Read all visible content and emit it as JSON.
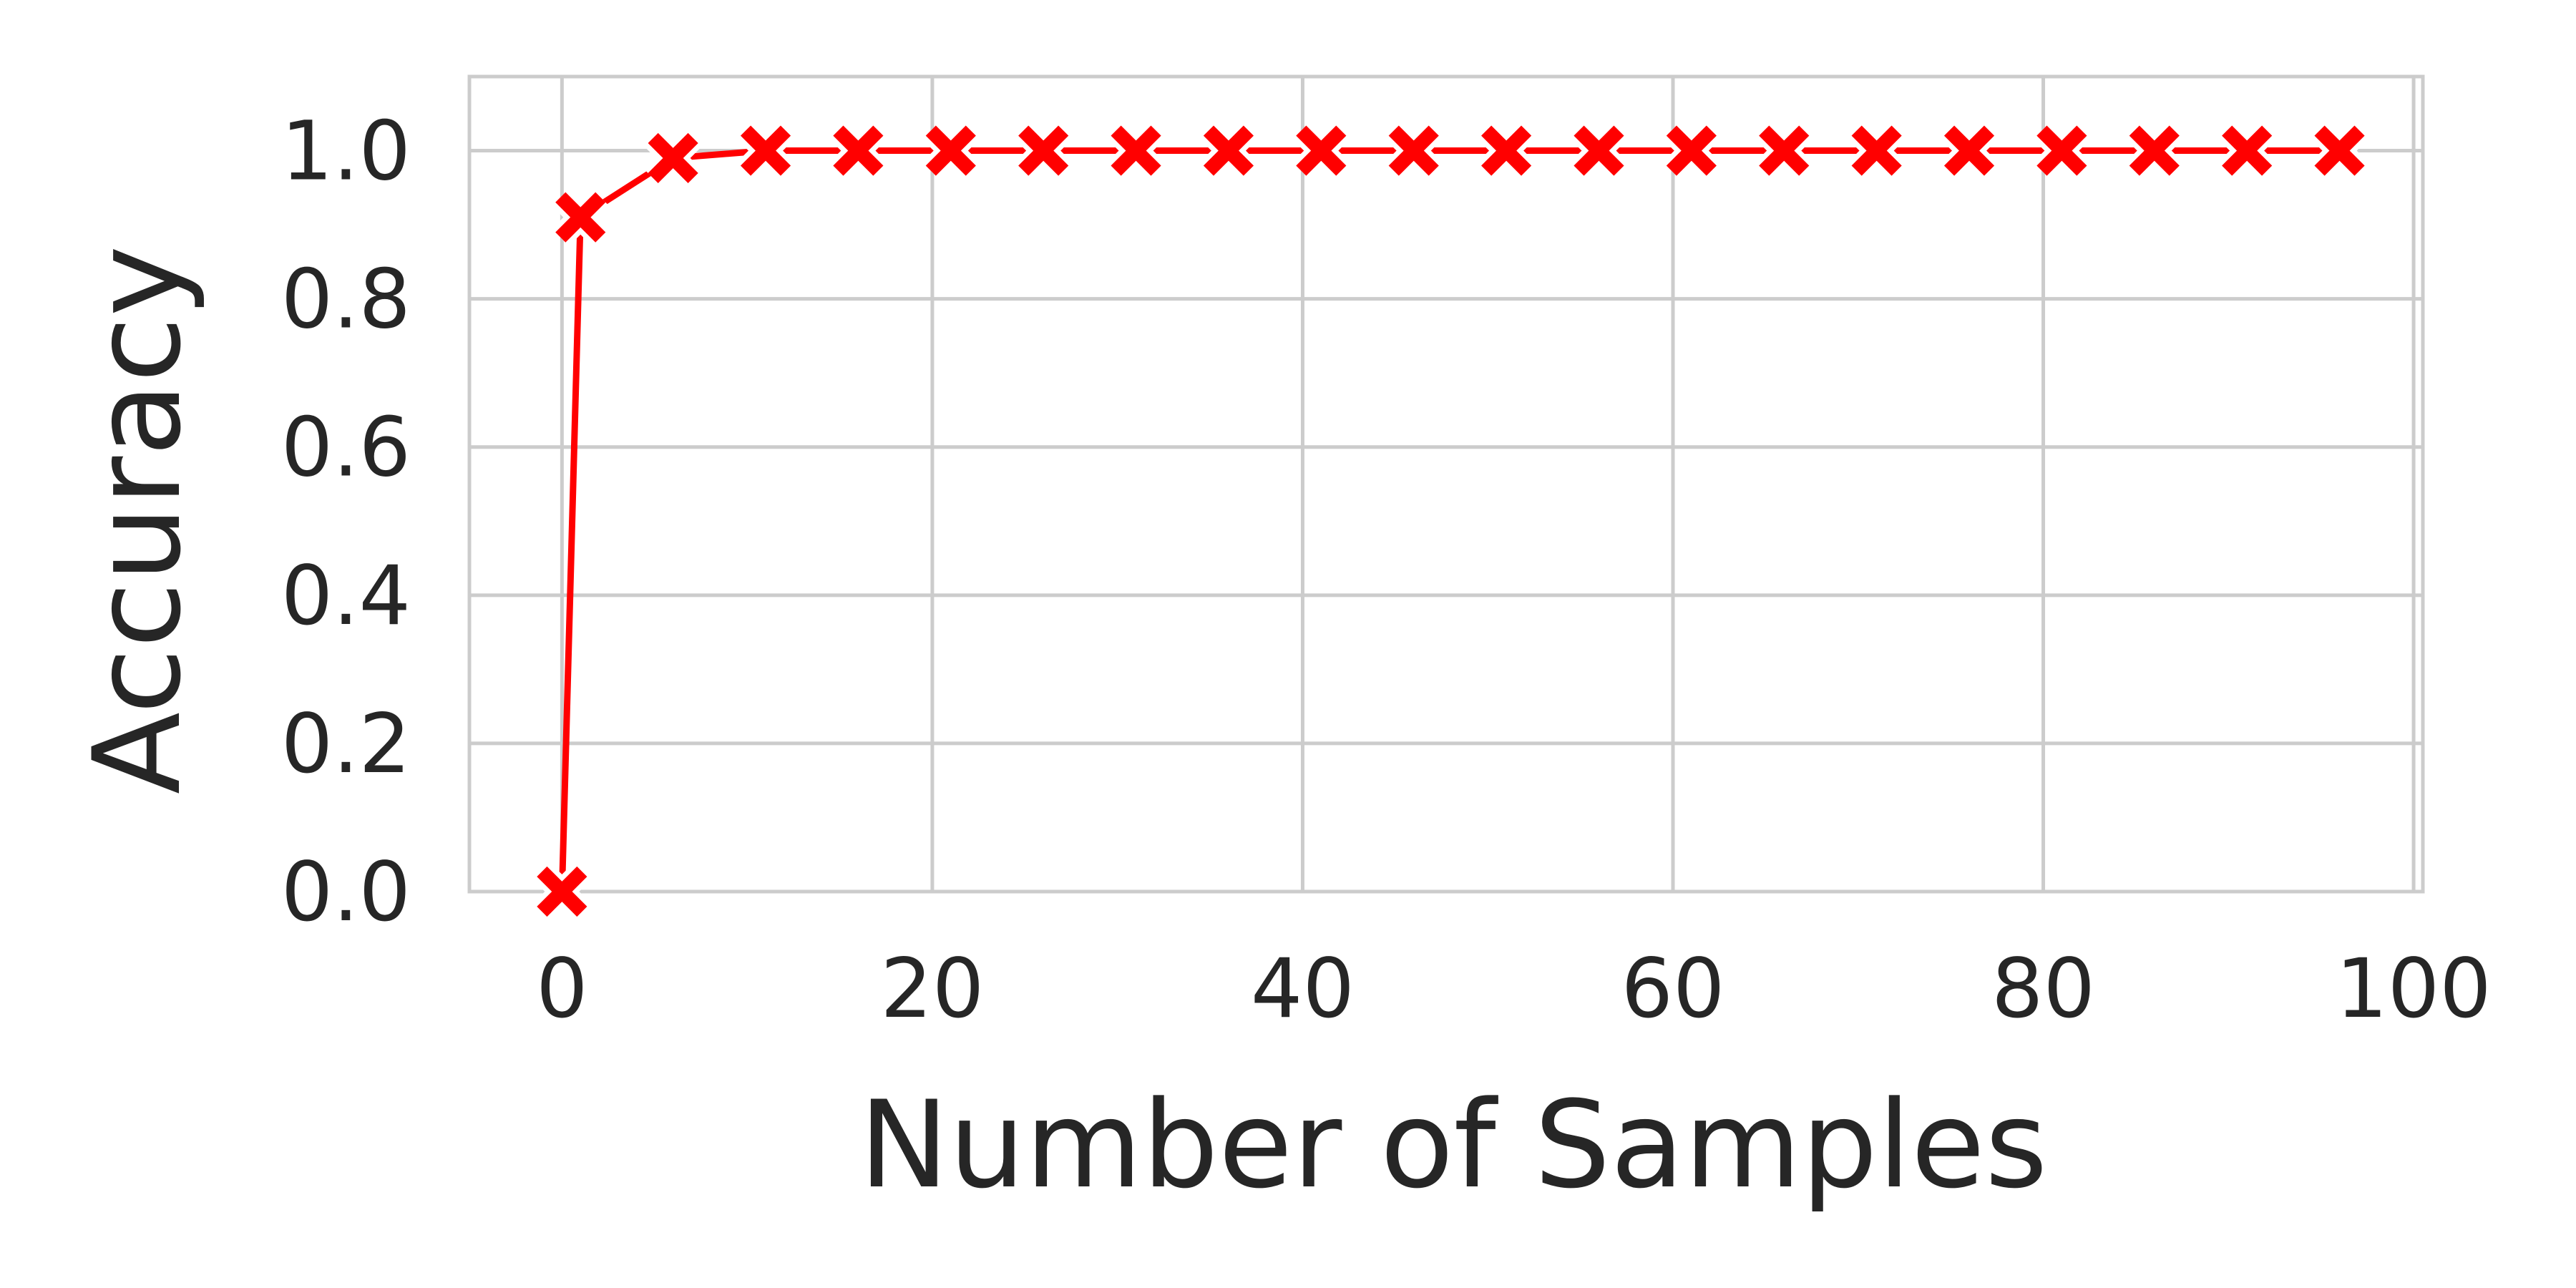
{
  "chart_data": {
    "type": "line",
    "xlabel": "Number of Samples",
    "ylabel": "Accuracy",
    "x_ticks": [
      "0",
      "20",
      "40",
      "60",
      "80",
      "100"
    ],
    "y_ticks": [
      "0.0",
      "0.2",
      "0.4",
      "0.6",
      "0.8",
      "1.0"
    ],
    "xlim": [
      -5,
      100.5
    ],
    "ylim": [
      0,
      1.1
    ],
    "grid": true,
    "series": [
      {
        "color": "#ff0000",
        "marker": "x",
        "points": [
          {
            "x": 0,
            "y": 0.0
          },
          {
            "x": 1,
            "y": 0.91
          },
          {
            "x": 6,
            "y": 0.99
          },
          {
            "x": 11,
            "y": 1.0
          },
          {
            "x": 16,
            "y": 1.0
          },
          {
            "x": 21,
            "y": 1.0
          },
          {
            "x": 26,
            "y": 1.0
          },
          {
            "x": 31,
            "y": 1.0
          },
          {
            "x": 36,
            "y": 1.0
          },
          {
            "x": 41,
            "y": 1.0
          },
          {
            "x": 46,
            "y": 1.0
          },
          {
            "x": 51,
            "y": 1.0
          },
          {
            "x": 56,
            "y": 1.0
          },
          {
            "x": 61,
            "y": 1.0
          },
          {
            "x": 66,
            "y": 1.0
          },
          {
            "x": 71,
            "y": 1.0
          },
          {
            "x": 76,
            "y": 1.0
          },
          {
            "x": 81,
            "y": 1.0
          },
          {
            "x": 86,
            "y": 1.0
          },
          {
            "x": 91,
            "y": 1.0
          },
          {
            "x": 96,
            "y": 1.0
          }
        ]
      }
    ]
  }
}
